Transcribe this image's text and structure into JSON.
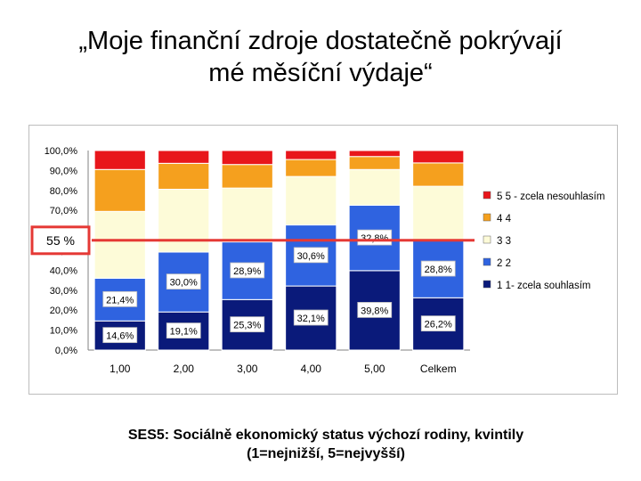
{
  "title": {
    "line1": "„Moje finanční zdroje dostatečně pokrývají",
    "line2": "mé měsíční výdaje“"
  },
  "caption": {
    "line1": "SES5: Sociálně ekonomický status výchozí rodiny, kvintily",
    "line2": "(1=nejnižší, 5=nejvyšší)"
  },
  "annotation": {
    "label": "55 %",
    "value": 55,
    "color": "#e53935"
  },
  "chart_data": {
    "type": "bar",
    "stacked": true,
    "categories": [
      "1,00",
      "2,00",
      "3,00",
      "4,00",
      "5,00",
      "Celkem"
    ],
    "y_ticks": [
      "0,0%",
      "10,0%",
      "20,0%",
      "30,0%",
      "40,0%",
      "50,0%",
      "60,0%",
      "70,0%",
      "80,0%",
      "90,0%",
      "100,0%"
    ],
    "ylim": [
      0,
      100
    ],
    "grid": false,
    "legend_position": "right",
    "series": [
      {
        "name": "1  1- zcela souhlasím",
        "color": "#0a1a7a",
        "values": [
          14.6,
          19.1,
          25.3,
          32.1,
          39.8,
          26.2
        ],
        "labels": [
          "14,6%",
          "19,1%",
          "25,3%",
          "32,1%",
          "39,8%",
          "26,2%"
        ]
      },
      {
        "name": "2  2",
        "color": "#2f63e0",
        "values": [
          21.4,
          30.0,
          28.9,
          30.6,
          32.8,
          28.8
        ],
        "labels": [
          "21,4%",
          "30,0%",
          "28,9%",
          "30,6%",
          "32,8%",
          "28,8%"
        ]
      },
      {
        "name": "3  3",
        "color": "#fdfbd8",
        "values": [
          33.5,
          31.5,
          27.0,
          24.3,
          17.9,
          27.1
        ],
        "labels": [
          "",
          "",
          "",
          "",
          "",
          ""
        ]
      },
      {
        "name": "4  4",
        "color": "#f5a01e",
        "values": [
          21.0,
          13.0,
          11.8,
          8.5,
          6.5,
          11.7
        ],
        "labels": [
          "",
          "",
          "",
          "",
          "",
          ""
        ]
      },
      {
        "name": "5  5 - zcela nesouhlasím",
        "color": "#e8161b",
        "values": [
          9.5,
          6.4,
          7.0,
          4.5,
          3.0,
          6.2
        ],
        "labels": [
          "",
          "",
          "",
          "",
          "",
          ""
        ]
      }
    ]
  }
}
